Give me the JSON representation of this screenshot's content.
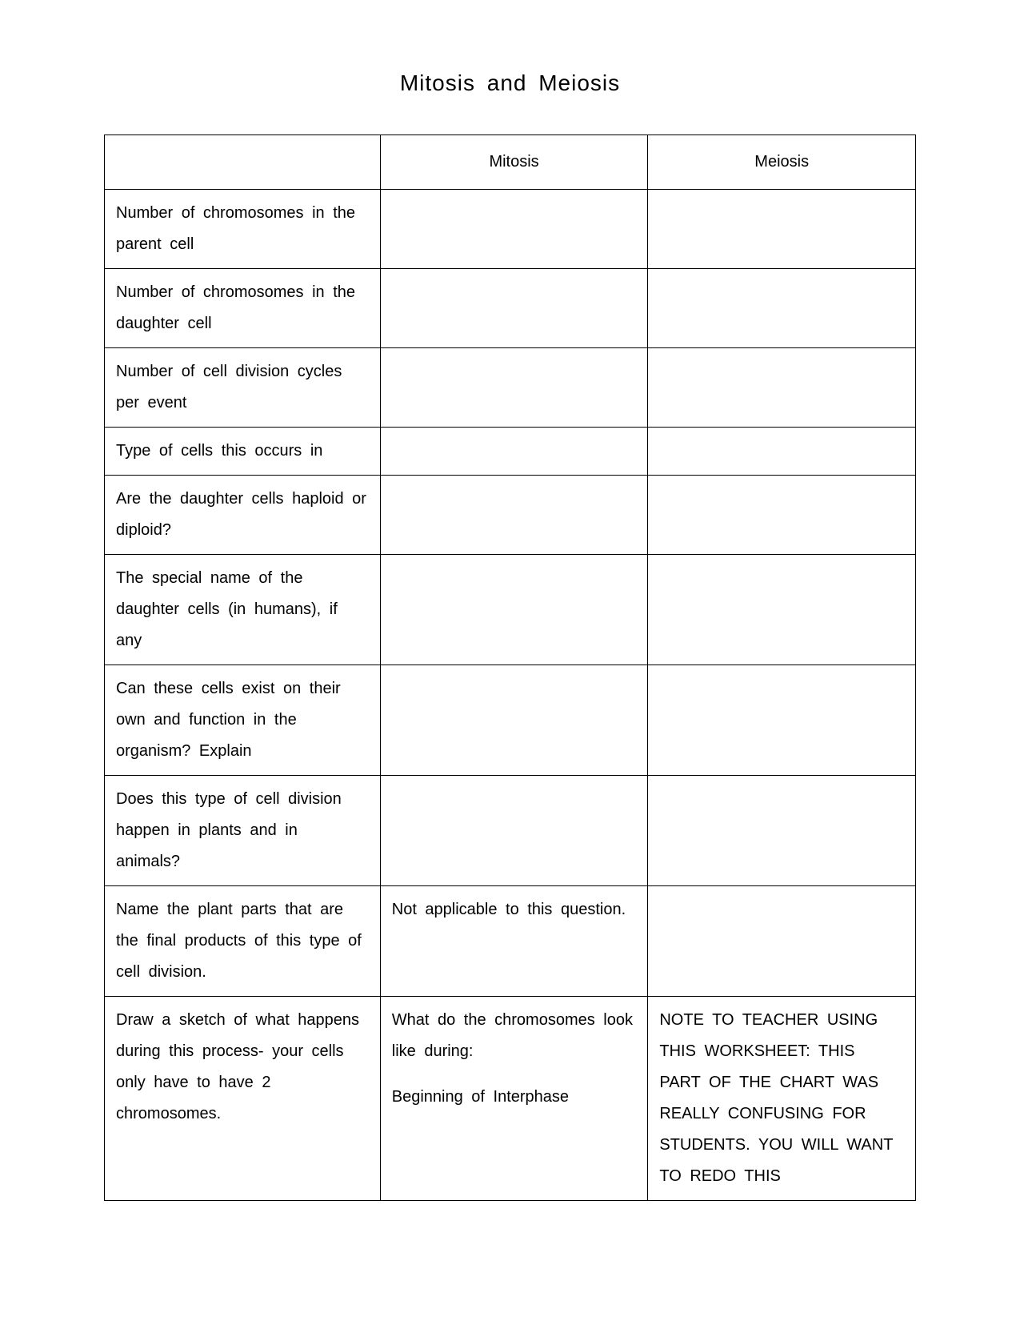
{
  "title": "Mitosis  and  Meiosis",
  "table": {
    "columns": [
      "",
      "Mitosis",
      "Meiosis"
    ],
    "col_widths_pct": [
      34,
      33,
      33
    ],
    "border_color": "#000000",
    "background_color": "#ffffff",
    "text_color": "#000000",
    "font_size_pt": 15,
    "title_font_size_pt": 21,
    "rows": [
      {
        "label": "Number  of  chromosomes in  the  parent  cell",
        "mitosis": "",
        "meiosis": ""
      },
      {
        "label": "Number  of  chromosomes in  the  daughter  cell",
        "mitosis": "",
        "meiosis": ""
      },
      {
        "label": "Number  of  cell  division cycles  per  event",
        "mitosis": "",
        "meiosis": ""
      },
      {
        "label": "Type  of  cells  this  occurs in",
        "mitosis": "",
        "meiosis": ""
      },
      {
        "label": "Are  the  daughter  cells haploid  or  diploid?",
        "mitosis": "",
        "meiosis": ""
      },
      {
        "label": "The  special  name  of  the daughter  cells  (in humans),  if  any",
        "mitosis": "",
        "meiosis": ""
      },
      {
        "label": "Can  these  cells  exist  on their  own  and  function  in the  organism?    Explain",
        "mitosis": "",
        "meiosis": ""
      },
      {
        "label": "Does  this  type  of  cell division  happen  in  plants and  in  animals?",
        "mitosis": "",
        "meiosis": ""
      },
      {
        "label": "Name  the  plant  parts that  are  the  final products  of  this  type  of cell  division.",
        "mitosis": "Not  applicable  to  this question.",
        "meiosis": ""
      },
      {
        "label": "Draw  a  sketch  of  what happens  during  this process-  your  cells  only have  to  have  2 chromosomes.",
        "mitosis_paras": [
          "What  do  the chromosomes  look  like during:",
          "Beginning  of  Interphase"
        ],
        "meiosis": "NOTE  TO  TEACHER USING  THIS WORKSHEET:  THIS PART  OF  THE  CHART WAS  REALLY CONFUSING  FOR STUDENTS.   YOU  WILL WANT  TO  REDO  THIS"
      }
    ]
  }
}
